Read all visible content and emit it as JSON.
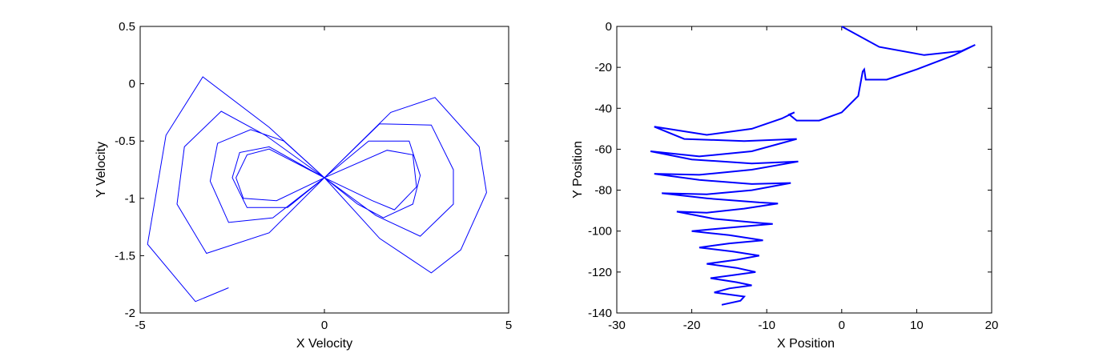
{
  "chart_data": [
    {
      "type": "line",
      "xlabel": "X Velocity",
      "ylabel": "Y Velocity",
      "xlim": [
        -5,
        5
      ],
      "ylim": [
        -2,
        0.5
      ],
      "xticks": [
        -5,
        0,
        5
      ],
      "xtick_labels": [
        "-5",
        "0",
        "5"
      ],
      "yticks": [
        0.5,
        0,
        -0.5,
        -1,
        -1.5,
        -2
      ],
      "ytick_labels": [
        "0.5",
        "0",
        "-0.5",
        "-1",
        "-1.5",
        "-2"
      ],
      "grid": false,
      "series": [
        {
          "color": "#0000ff",
          "description_points": {
            "x": [
              -2.6,
              -3.5,
              -4.8,
              -4.3,
              -3.3,
              -1.5,
              0,
              1.8,
              3.0,
              4.2,
              4.4,
              3.7,
              2.9,
              1.5,
              0,
              -1.5,
              -3.2,
              -4.0,
              -3.8,
              -2.8,
              -1.6,
              0,
              1.5,
              2.9,
              3.5,
              3.5,
              2.6,
              1.4,
              0,
              -1.4,
              -2.6,
              -3.1,
              -2.9,
              -2.0,
              -1.1,
              0,
              1.2,
              2.3,
              2.6,
              2.4,
              1.6,
              0.9,
              0,
              -1.0,
              -2.1,
              -2.5,
              -2.3,
              -1.5,
              0,
              1.7,
              2.4,
              2.5,
              1.9,
              1.3,
              0,
              -1.3,
              -2.2,
              -2.4,
              -2.1,
              -1.5,
              0
            ],
            "y": [
              -1.78,
              -1.9,
              -1.4,
              -0.45,
              0.06,
              -0.38,
              -0.82,
              -0.25,
              -0.12,
              -0.55,
              -0.95,
              -1.45,
              -1.65,
              -1.35,
              -0.82,
              -1.3,
              -1.48,
              -1.05,
              -0.55,
              -0.24,
              -0.45,
              -0.82,
              -0.35,
              -0.36,
              -0.75,
              -1.05,
              -1.33,
              -1.15,
              -0.82,
              -1.17,
              -1.21,
              -0.85,
              -0.52,
              -0.4,
              -0.5,
              -0.82,
              -0.5,
              -0.5,
              -0.8,
              -1.05,
              -1.17,
              -1.05,
              -0.82,
              -1.08,
              -1.08,
              -0.82,
              -0.6,
              -0.55,
              -0.82,
              -0.58,
              -0.62,
              -0.9,
              -1.1,
              -1.02,
              -0.82,
              -1.02,
              -1.0,
              -0.82,
              -0.62,
              -0.57,
              -0.82
            ]
          }
        }
      ]
    },
    {
      "type": "line",
      "xlabel": "X Position",
      "ylabel": "Y Position",
      "xlim": [
        -30,
        20
      ],
      "ylim": [
        -140,
        0
      ],
      "xticks": [
        -30,
        -20,
        -10,
        0,
        10,
        20
      ],
      "xtick_labels": [
        "-30",
        "-20",
        "-10",
        "0",
        "10",
        "20"
      ],
      "yticks": [
        0,
        -20,
        -40,
        -60,
        -80,
        -100,
        -120,
        -140
      ],
      "ytick_labels": [
        "0",
        "-20",
        "-40",
        "-60",
        "-80",
        "-100",
        "-120",
        "-140"
      ],
      "grid": false,
      "series": [
        {
          "color": "#0000ff",
          "x": [
            0,
            5,
            11,
            16,
            17.8,
            15,
            10,
            6,
            3.2,
            3,
            2.8,
            2.2,
            0,
            -3,
            -6,
            -7,
            -6.3,
            -8,
            -12,
            -18,
            -25,
            -21,
            -13,
            -6,
            -12,
            -19,
            -25.5,
            -20,
            -12,
            -5.8,
            -12,
            -19,
            -25,
            -19,
            -12,
            -6.8,
            -12,
            -18,
            -24,
            -18,
            -11,
            -8.5,
            -13,
            -18,
            -22,
            -17,
            -11,
            -9.2,
            -14,
            -20,
            -15,
            -10.5,
            -15,
            -19,
            -14.5,
            -11,
            -14,
            -18,
            -14,
            -11.5,
            -14.5,
            -17.5,
            -14,
            -12,
            -15,
            -17,
            -13,
            -13.5,
            -16
          ],
          "y": [
            0,
            -10,
            -14,
            -12,
            -9,
            -14,
            -21,
            -26,
            -26,
            -21,
            -22,
            -34,
            -42,
            -46,
            -46,
            -43,
            -42,
            -45,
            -50,
            -53,
            -49,
            -55,
            -56,
            -55,
            -61,
            -63.5,
            -61,
            -65,
            -67,
            -66,
            -70,
            -72.5,
            -72,
            -75,
            -77,
            -76.5,
            -80,
            -82,
            -81.5,
            -84,
            -86,
            -86.5,
            -89,
            -91,
            -90.5,
            -94,
            -96,
            -96.5,
            -98,
            -100,
            -102,
            -104.5,
            -106,
            -108,
            -110,
            -112,
            -114,
            -116,
            -118,
            -120,
            -121.5,
            -123,
            -125,
            -126.5,
            -128,
            -130,
            -132,
            -134,
            -136
          ]
        }
      ]
    }
  ]
}
